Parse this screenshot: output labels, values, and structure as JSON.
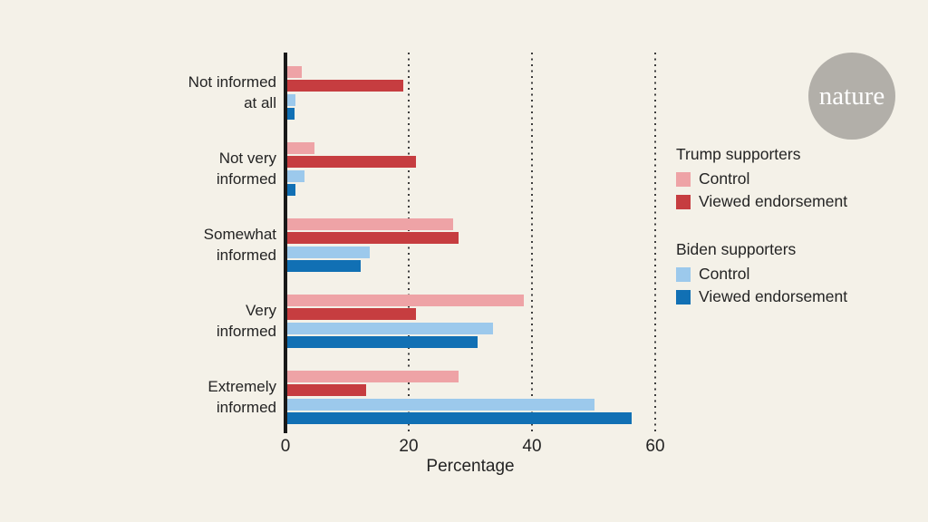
{
  "page": {
    "background": "#f4f1e8",
    "text_color": "#242424"
  },
  "logo": {
    "text": "nature",
    "circle_color": "#b2afa9",
    "text_color": "#ffffff"
  },
  "chart_data": {
    "type": "bar",
    "orientation": "horizontal",
    "xlabel": "Percentage",
    "xlim": [
      0,
      60
    ],
    "xticks": [
      0,
      20,
      40,
      60
    ],
    "grid": {
      "style": "dotted",
      "axis": "x",
      "at": [
        20,
        40,
        60
      ]
    },
    "categories": [
      "Not informed\nat all",
      "Not very\ninformed",
      "Somewhat\ninformed",
      "Very\ninformed",
      "Extremely\ninformed"
    ],
    "series": [
      {
        "group": "Trump supporters",
        "name": "Control",
        "color": "#eea3a6",
        "values": [
          2.5,
          4.5,
          27,
          38.5,
          28
        ]
      },
      {
        "group": "Trump supporters",
        "name": "Viewed endorsement",
        "color": "#c63d40",
        "values": [
          19,
          21,
          28,
          21,
          13
        ]
      },
      {
        "group": "Biden supporters",
        "name": "Control",
        "color": "#9cc9ec",
        "values": [
          1.5,
          3,
          13.5,
          33.5,
          50
        ]
      },
      {
        "group": "Biden supporters",
        "name": "Viewed endorsement",
        "color": "#1170b4",
        "values": [
          1.3,
          1.5,
          12,
          31,
          56
        ]
      }
    ]
  },
  "legend": {
    "groups": [
      {
        "title": "Trump supporters",
        "items": [
          {
            "label": "Control",
            "color": "#eea3a6"
          },
          {
            "label": "Viewed endorsement",
            "color": "#c63d40"
          }
        ]
      },
      {
        "title": "Biden supporters",
        "items": [
          {
            "label": "Control",
            "color": "#9cc9ec"
          },
          {
            "label": "Viewed endorsement",
            "color": "#1170b4"
          }
        ]
      }
    ]
  }
}
